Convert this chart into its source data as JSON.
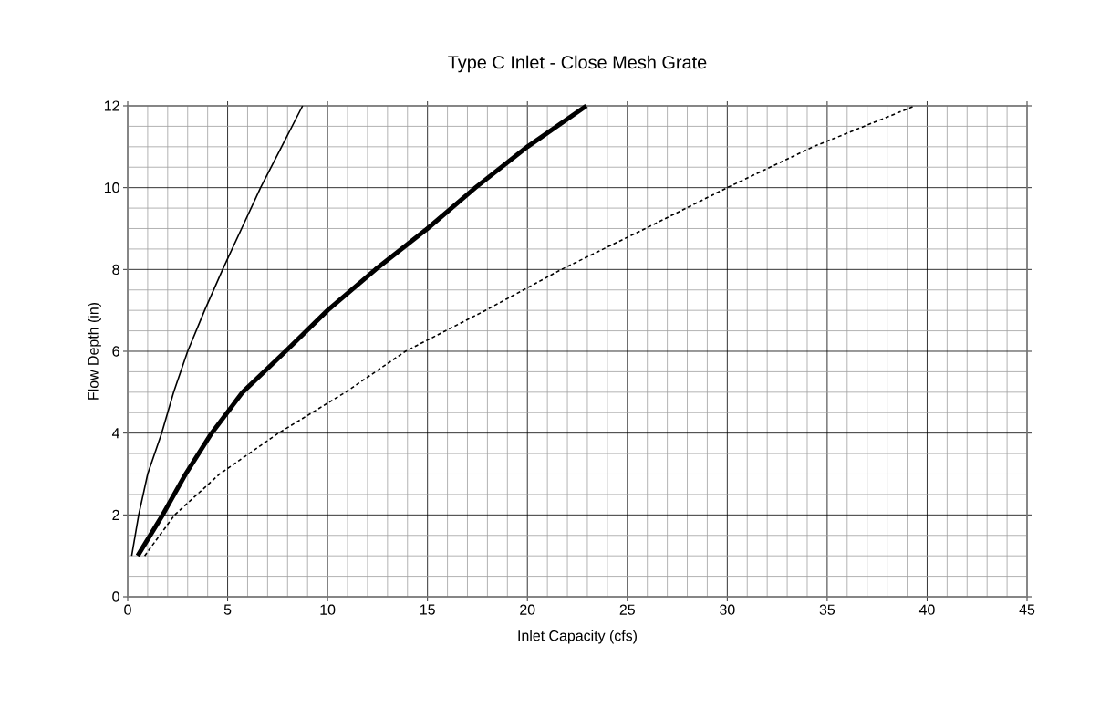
{
  "chart_data": {
    "type": "line",
    "title": "Type C Inlet - Close Mesh Grate",
    "xlabel": "Inlet Capacity (cfs)",
    "ylabel": "Flow Depth (in)",
    "xlim": [
      0,
      45
    ],
    "ylim": [
      0,
      12
    ],
    "xticks": [
      0,
      5,
      10,
      15,
      20,
      25,
      30,
      35,
      40,
      45
    ],
    "yticks": [
      0,
      2,
      4,
      6,
      8,
      10,
      12
    ],
    "grid": true,
    "marker": "none",
    "series": [
      {
        "color": "#000000",
        "line_style": "solid",
        "x": [
          0.2,
          0.55,
          1.0,
          1.7,
          2.3,
          3.0,
          3.85,
          4.75,
          5.7,
          6.65,
          7.7,
          8.75
        ],
        "values": [
          1,
          2,
          3,
          4,
          5,
          6,
          7,
          8,
          9,
          10,
          11,
          12
        ]
      },
      {
        "color": "#000000",
        "line_style": "solid",
        "x": [
          0.5,
          1.75,
          2.9,
          4.2,
          5.75,
          7.9,
          10.0,
          12.4,
          15.0,
          17.4,
          20.0,
          22.95
        ],
        "values": [
          1,
          2,
          3,
          4,
          5,
          6,
          7,
          8,
          9,
          10,
          11,
          12
        ]
      },
      {
        "color": "#000000",
        "line_style": "dashed",
        "x": [
          0.85,
          2.35,
          4.6,
          7.55,
          10.9,
          13.9,
          17.9,
          21.7,
          25.9,
          30.0,
          34.3,
          39.4
        ],
        "values": [
          1,
          2,
          3,
          4,
          5,
          6,
          7,
          8,
          9,
          10,
          11,
          12
        ]
      }
    ]
  }
}
